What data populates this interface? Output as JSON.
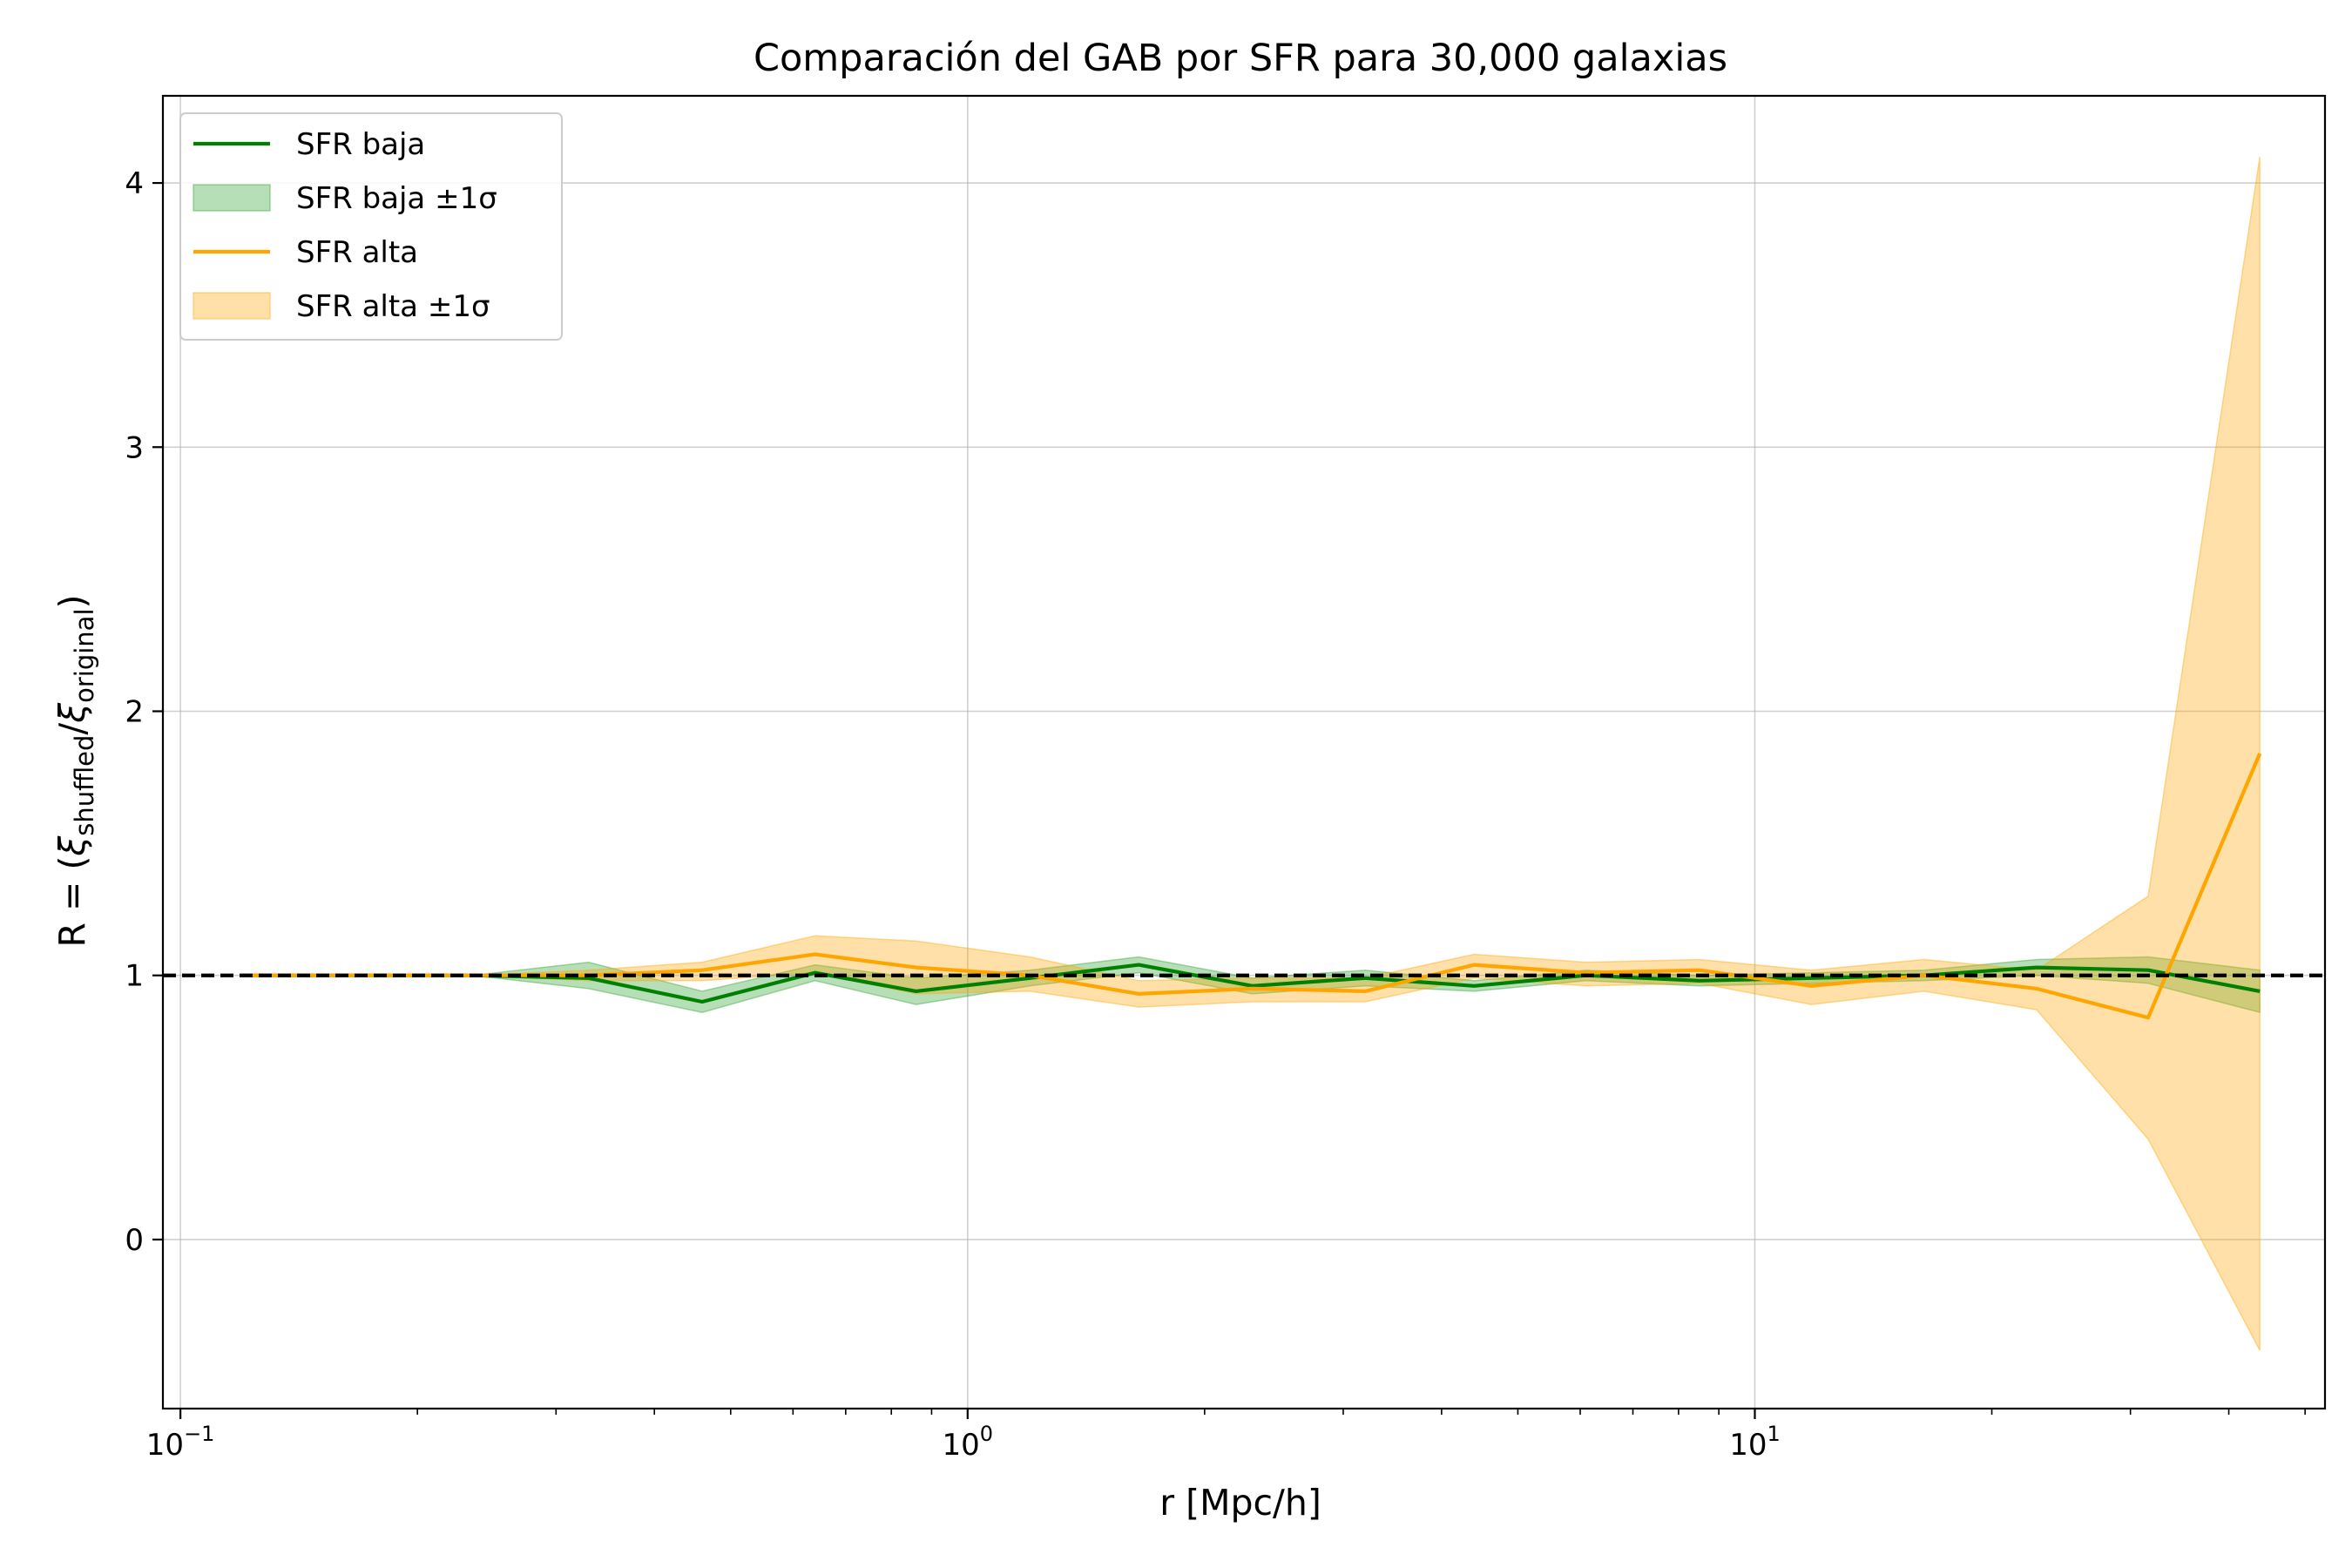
{
  "chart_data": {
    "type": "line",
    "title": "Comparación del GAB por SFR para 30,000 galaxias",
    "xlabel": "r [Mpc/h]",
    "ylabel": "R = (ξshuffled/ξoriginal)",
    "ylabel_parts": {
      "prefix": "R = (",
      "xi1": "ξ",
      "sub1": "shuffled",
      "slash": "/",
      "xi2": "ξ",
      "sub2": "original",
      "suffix": ")"
    },
    "xscale": "log",
    "xlim": [
      0.095,
      53
    ],
    "ylim": [
      -0.64,
      4.33
    ],
    "x_ticks": [
      {
        "value": 0.1,
        "base": "10",
        "exp": "−1"
      },
      {
        "value": 1,
        "base": "10",
        "exp": "0"
      },
      {
        "value": 10,
        "base": "10",
        "exp": "1"
      }
    ],
    "y_ticks": [
      0,
      1,
      2,
      3,
      4
    ],
    "grid": true,
    "legend_position": "top-left",
    "reference_line": {
      "y": 1,
      "style": "dashed",
      "color": "#000000"
    },
    "x": [
      0.12,
      0.168,
      0.235,
      0.33,
      0.46,
      0.64,
      0.86,
      1.2,
      1.65,
      2.3,
      3.2,
      4.4,
      6.1,
      8.5,
      11.8,
      16.4,
      22.8,
      31.6,
      43.8
    ],
    "series": [
      {
        "name": "SFR baja",
        "band_name": "SFR baja ±1σ",
        "color": "#008000",
        "band_color": "#2ca02c",
        "values": [
          1.0,
          1.0,
          1.0,
          0.99,
          0.9,
          1.01,
          0.94,
          0.99,
          1.04,
          0.96,
          0.99,
          0.96,
          1.0,
          0.98,
          0.99,
          1.0,
          1.03,
          1.02,
          0.94
        ],
        "lower": [
          1.0,
          1.0,
          1.0,
          0.95,
          0.86,
          0.98,
          0.89,
          0.96,
          1.01,
          0.93,
          0.96,
          0.94,
          0.98,
          0.96,
          0.97,
          0.98,
          1.0,
          0.97,
          0.86
        ],
        "upper": [
          1.0,
          1.0,
          1.0,
          1.05,
          0.94,
          1.04,
          0.99,
          1.02,
          1.07,
          0.99,
          1.02,
          0.98,
          1.02,
          1.0,
          1.01,
          1.02,
          1.06,
          1.07,
          1.02
        ]
      },
      {
        "name": "SFR alta",
        "band_name": "SFR alta ±1σ",
        "color": "#FFA500",
        "band_color": "#FFA500",
        "values": [
          1.0,
          1.0,
          1.0,
          1.0,
          1.02,
          1.08,
          1.03,
          1.0,
          0.93,
          0.95,
          0.94,
          1.04,
          1.01,
          1.02,
          0.96,
          1.0,
          0.95,
          0.84,
          1.84
        ],
        "lower": [
          1.0,
          1.0,
          1.0,
          0.98,
          0.98,
          1.01,
          0.93,
          0.94,
          0.88,
          0.9,
          0.9,
          0.99,
          0.96,
          0.97,
          0.89,
          0.94,
          0.87,
          0.38,
          -0.42
        ],
        "upper": [
          1.0,
          1.0,
          1.0,
          1.02,
          1.05,
          1.15,
          1.13,
          1.07,
          0.98,
          0.99,
          0.99,
          1.08,
          1.05,
          1.06,
          1.02,
          1.06,
          1.02,
          1.3,
          4.1
        ]
      }
    ]
  }
}
